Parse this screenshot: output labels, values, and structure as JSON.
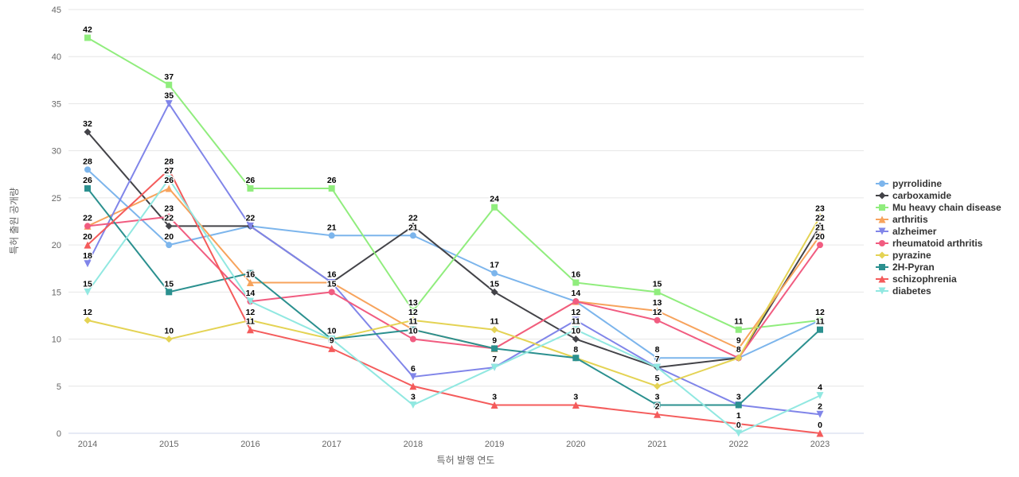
{
  "chart_data": {
    "type": "line",
    "title": "",
    "xlabel": "특허 발행 연도",
    "ylabel": "특허 출원 공개량",
    "x": [
      2014,
      2015,
      2016,
      2017,
      2018,
      2019,
      2020,
      2021,
      2022,
      2023
    ],
    "ylim": [
      0,
      45
    ],
    "yticks": [
      0,
      5,
      10,
      15,
      20,
      25,
      30,
      35,
      40,
      45
    ],
    "grid": true,
    "legend_position": "right",
    "background_color": "#ffffff",
    "gridline_color": "#e6e6e6",
    "axisline_color": "#ccd6eb",
    "series": [
      {
        "name": "pyrrolidine",
        "color": "#7cb5ec",
        "marker": "circle",
        "values": [
          28,
          20,
          22,
          21,
          21,
          17,
          14,
          8,
          8,
          12
        ]
      },
      {
        "name": "carboxamide",
        "color": "#434348",
        "marker": "diamond",
        "values": [
          32,
          22,
          22,
          16,
          22,
          15,
          10,
          7,
          8,
          22
        ]
      },
      {
        "name": "Mu heavy chain disease",
        "color": "#90ed7d",
        "marker": "square",
        "values": [
          42,
          37,
          26,
          26,
          13,
          24,
          16,
          15,
          11,
          12
        ]
      },
      {
        "name": "arthritis",
        "color": "#f7a35c",
        "marker": "triangle",
        "values": [
          22,
          26,
          16,
          16,
          11,
          9,
          14,
          13,
          9,
          21
        ]
      },
      {
        "name": "alzheimer",
        "color": "#8085e9",
        "marker": "triangle-down",
        "values": [
          18,
          35,
          22,
          16,
          6,
          7,
          12,
          7,
          3,
          2
        ]
      },
      {
        "name": "rheumatoid arthritis",
        "color": "#f15c80",
        "marker": "circle",
        "values": [
          22,
          23,
          14,
          15,
          10,
          9,
          14,
          12,
          8,
          20
        ]
      },
      {
        "name": "pyrazine",
        "color": "#e4d354",
        "marker": "diamond",
        "values": [
          12,
          10,
          12,
          10,
          12,
          11,
          8,
          5,
          8,
          23
        ]
      },
      {
        "name": "2H-Pyran",
        "color": "#2b908f",
        "marker": "square",
        "values": [
          26,
          15,
          17,
          10,
          11,
          9,
          8,
          3,
          3,
          11
        ]
      },
      {
        "name": "schizophrenia",
        "color": "#f45b5b",
        "marker": "triangle",
        "values": [
          20,
          28,
          11,
          9,
          5,
          3,
          3,
          2,
          1,
          0
        ]
      },
      {
        "name": "diabetes",
        "color": "#91e8e1",
        "marker": "triangle-down",
        "values": [
          15,
          27,
          14,
          10,
          3,
          7,
          11,
          7,
          0,
          4
        ]
      }
    ],
    "hidden_labels": [
      {
        "series": "2H-Pyran",
        "year": 2016
      },
      {
        "series": "schizophrenia",
        "year": 2018
      }
    ]
  }
}
